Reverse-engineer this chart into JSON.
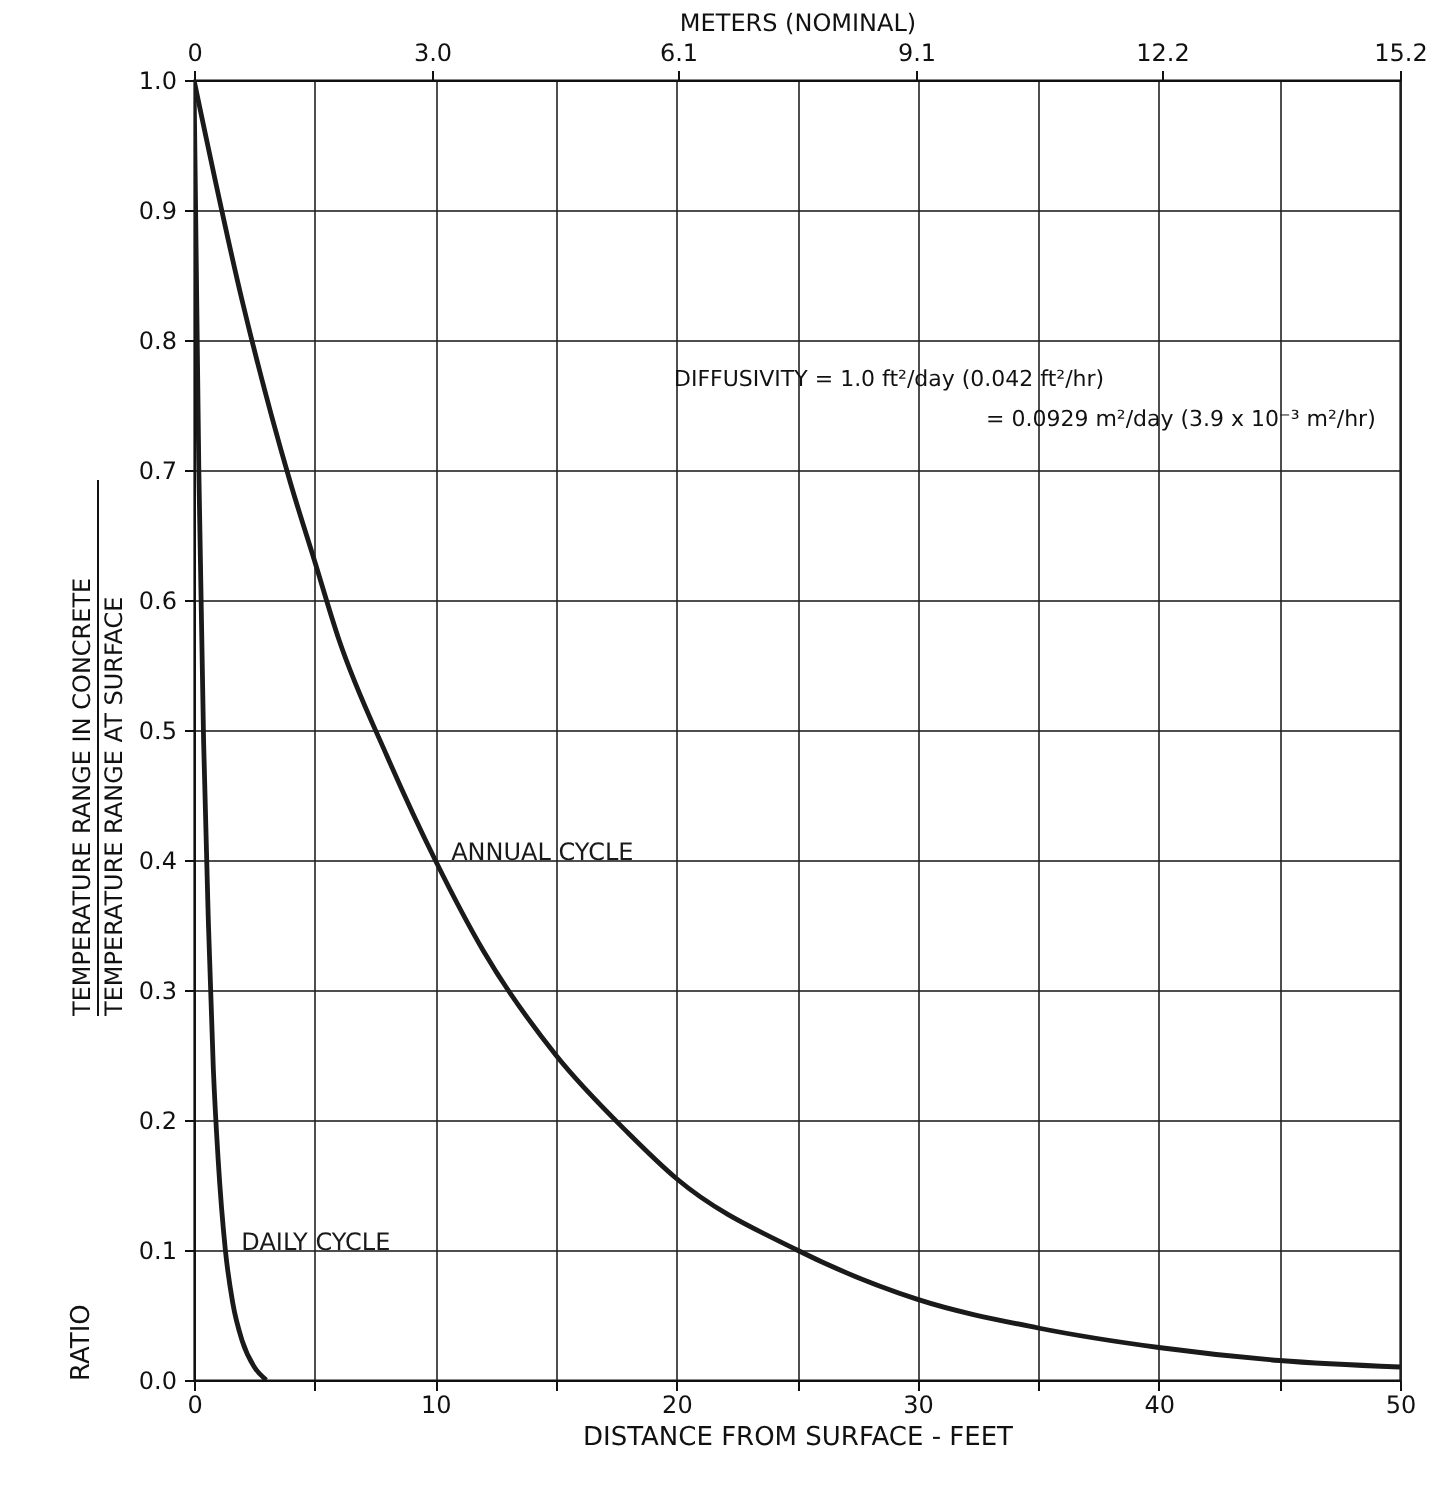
{
  "chart_data": {
    "type": "line",
    "xlabel": "DISTANCE FROM SURFACE - FEET",
    "ylabel": "RATIO",
    "x2label": "METERS (NOMINAL)",
    "annotations": [
      "TEMPERATURE RANGE IN CONCRETE",
      "TEMPERATURE RANGE AT SURFACE",
      "DIFFUSIVITY   = 1.0 ft²/day (0.042 ft²/hr)",
      "= 0.0929 m²/day (3.9 x 10⁻³ m²/hr)"
    ],
    "series": [
      {
        "name": "ANNUAL CYCLE",
        "color": "#1a1a1a",
        "x": [
          0,
          2,
          4,
          5,
          6,
          8,
          10,
          12,
          15,
          18,
          20,
          25,
          30,
          35,
          40,
          45,
          50
        ],
        "values": [
          1.0,
          0.83,
          0.69,
          0.63,
          0.57,
          0.48,
          0.4,
          0.33,
          0.25,
          0.19,
          0.155,
          0.1,
          0.062,
          0.04,
          0.025,
          0.015,
          0.01
        ]
      },
      {
        "name": "DAILY CYCLE",
        "color": "#1a1a1a",
        "x": [
          0,
          0.2,
          0.4,
          0.6,
          0.8,
          1,
          1.3,
          1.6,
          2,
          2.5,
          3
        ],
        "values": [
          1.0,
          0.7,
          0.49,
          0.35,
          0.24,
          0.17,
          0.1,
          0.06,
          0.03,
          0.01,
          0.0
        ]
      }
    ],
    "xlim": [
      0,
      50
    ],
    "xticks": [
      0,
      {
        "value": 5,
        "label": null
      },
      10,
      {
        "value": 15,
        "label": null
      },
      20,
      {
        "value": 25,
        "label": null
      },
      30,
      {
        "value": 35,
        "label": null
      },
      40,
      {
        "value": 45,
        "label": null
      },
      50
    ],
    "ylim": [
      0,
      1
    ],
    "yticks": [
      {
        "value": 0,
        "label": "0.0"
      },
      0.1,
      0.2,
      0.3,
      0.4,
      0.5,
      0.6,
      0.7,
      0.8,
      0.9,
      {
        "value": 1,
        "label": "1.0"
      }
    ],
    "x2lim": [
      0,
      15.2
    ],
    "x2ticks": [
      0,
      {
        "value": 3.0,
        "label": "3.0"
      },
      6.1,
      9.1,
      12.2,
      15.2
    ],
    "grid": true,
    "line_style": "solid"
  }
}
